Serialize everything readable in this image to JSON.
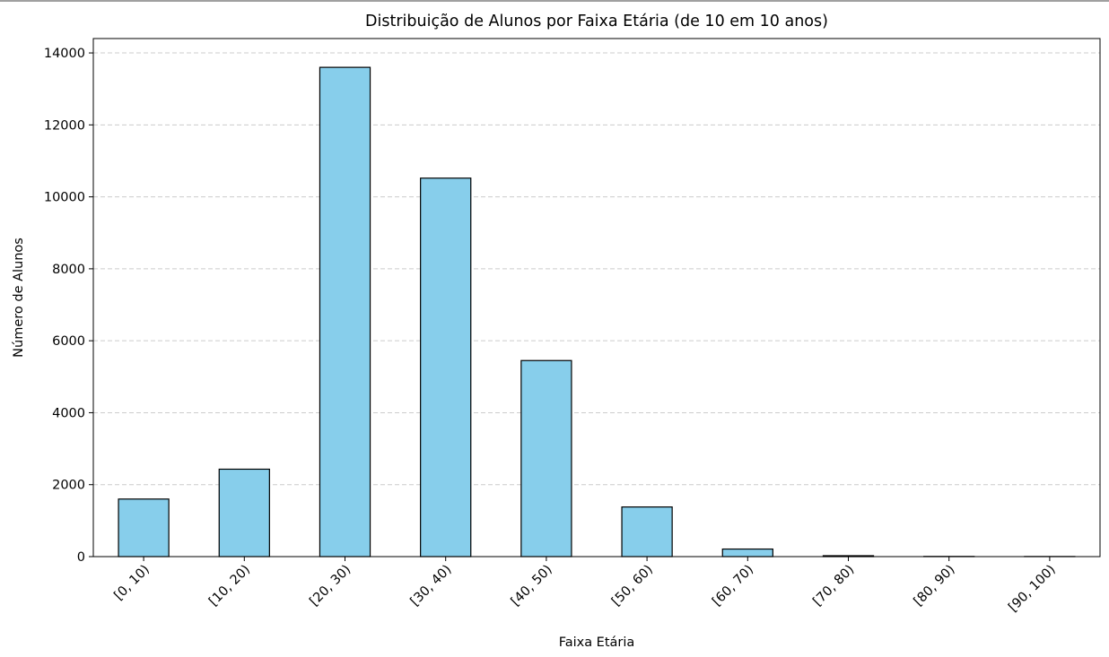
{
  "chart_data": {
    "type": "bar",
    "title": "Distribuição de Alunos por Faixa Etária (de 10 em 10 anos)",
    "xlabel": "Faixa Etária",
    "ylabel": "Número de Alunos",
    "categories": [
      "[0, 10)",
      "[10, 20)",
      "[20, 30)",
      "[30, 40)",
      "[40, 50)",
      "[50, 60)",
      "[60, 70)",
      "[70, 80)",
      "[80, 90)",
      "[90, 100)"
    ],
    "values": [
      1600,
      2430,
      13600,
      10520,
      5450,
      1380,
      210,
      25,
      5,
      3
    ],
    "ylim": [
      0,
      14400
    ],
    "yticks": [
      0,
      2000,
      4000,
      6000,
      8000,
      10000,
      12000,
      14000
    ],
    "ytick_labels": [
      "0",
      "2000",
      "4000",
      "6000",
      "8000",
      "10000",
      "12000",
      "14000"
    ],
    "grid": {
      "axis": "y",
      "style": "dashed",
      "color": "#cccccc"
    },
    "bar_color": "#87ceeb",
    "bar_edge_color": "#000000",
    "xtick_rotation_deg": -45
  }
}
